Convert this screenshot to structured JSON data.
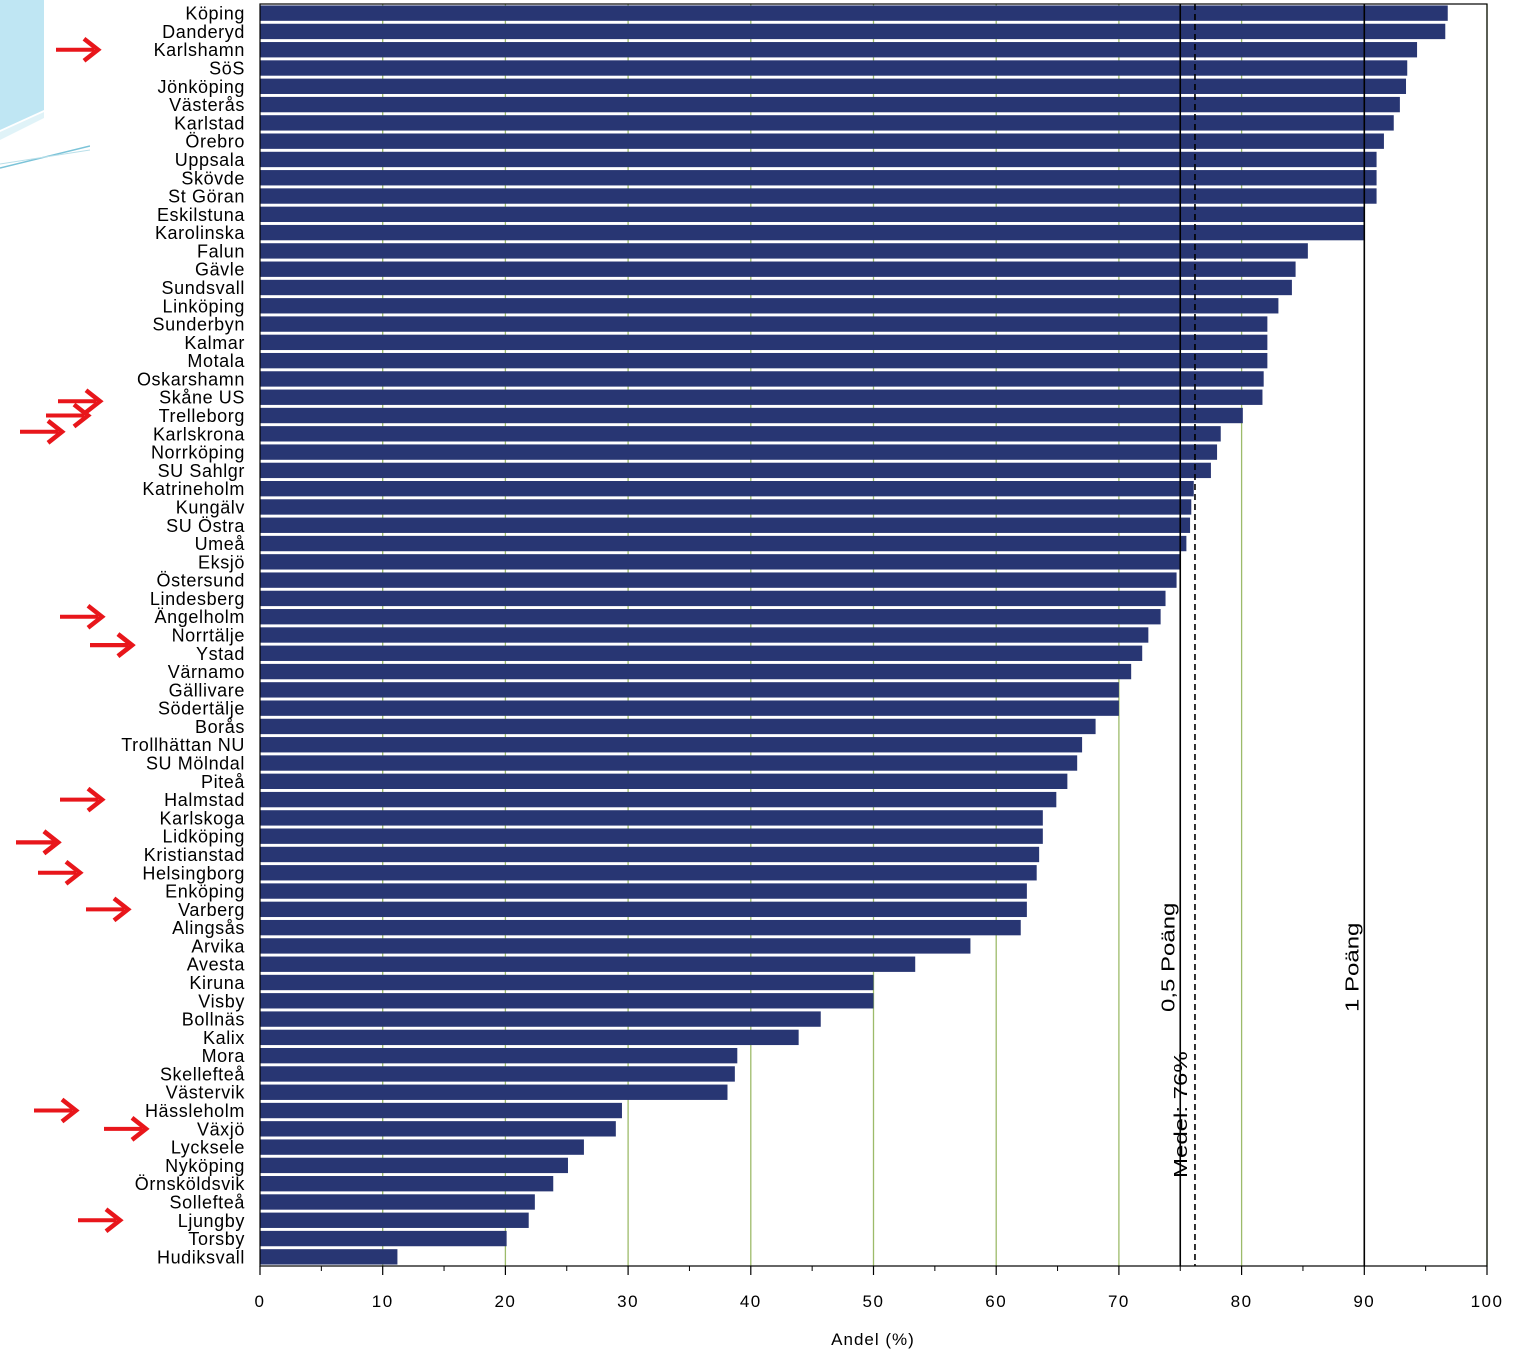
{
  "chart_data": {
    "type": "bar",
    "orientation": "horizontal",
    "xlabel": "Andel (%)",
    "xlim": [
      0,
      100
    ],
    "xticks": [
      0,
      10,
      20,
      30,
      40,
      50,
      60,
      70,
      80,
      90,
      100
    ],
    "categories": [
      "Köping",
      "Danderyd",
      "Karlshamn",
      "SöS",
      "Jönköping",
      "Västerås",
      "Karlstad",
      "Örebro",
      "Uppsala",
      "Skövde",
      "St Göran",
      "Eskilstuna",
      "Karolinska",
      "Falun",
      "Gävle",
      "Sundsvall",
      "Linköping",
      "Sunderbyn",
      "Kalmar",
      "Motala",
      "Oskarshamn",
      "Skåne US",
      "Trelleborg",
      "Karlskrona",
      "Norrköping",
      "SU Sahlgr",
      "Katrineholm",
      "Kungälv",
      "SU Östra",
      "Umeå",
      "Eksjö",
      "Östersund",
      "Lindesberg",
      "Ängelholm",
      "Norrtälje",
      "Ystad",
      "Värnamo",
      "Gällivare",
      "Södertälje",
      "Borås",
      "Trollhättan NU",
      "SU Mölndal",
      "Piteå",
      "Halmstad",
      "Karlskoga",
      "Lidköping",
      "Kristianstad",
      "Helsingborg",
      "Enköping",
      "Varberg",
      "Alingsås",
      "Arvika",
      "Avesta",
      "Kiruna",
      "Visby",
      "Bollnäs",
      "Kalix",
      "Mora",
      "Skellefteå",
      "Västervik",
      "Hässleholm",
      "Växjö",
      "Lycksele",
      "Nyköping",
      "Örnsköldsvik",
      "Sollefteå",
      "Ljungby",
      "Torsby",
      "Hudiksvall"
    ],
    "values": [
      96.8,
      96.6,
      94.3,
      93.5,
      93.4,
      92.9,
      92.4,
      91.6,
      91.0,
      91.0,
      91.0,
      90.0,
      90.0,
      85.4,
      84.4,
      84.1,
      83.0,
      82.1,
      82.1,
      82.1,
      81.8,
      81.7,
      80.1,
      78.3,
      78.0,
      77.5,
      76.1,
      75.9,
      75.8,
      75.5,
      75.0,
      74.7,
      73.8,
      73.4,
      72.4,
      71.9,
      71.0,
      70.0,
      70.0,
      68.1,
      67.0,
      66.6,
      65.8,
      64.9,
      63.8,
      63.8,
      63.5,
      63.3,
      62.5,
      62.5,
      62.0,
      57.9,
      53.4,
      50.0,
      50.0,
      45.7,
      43.9,
      38.9,
      38.7,
      38.1,
      29.5,
      29.0,
      26.4,
      25.1,
      23.9,
      22.4,
      21.9,
      20.1,
      11.2
    ],
    "grid": "vertical",
    "bar_color": "#283673",
    "gridline_color": "#9dbb6a",
    "arrow_color": "#e8161b",
    "reference_lines": [
      {
        "value": 75,
        "style": "solid",
        "label": "0,5 Poäng"
      },
      {
        "value": 76.2,
        "style": "dashed",
        "label": "Medel: 76%"
      },
      {
        "value": 90,
        "style": "solid",
        "label": "1 Poäng"
      }
    ],
    "highlighted": [
      "Karlshamn",
      "Skåne US",
      "Trelleborg",
      "Karlskrona",
      "Ängelholm",
      "Norrtälje",
      "Ystad",
      "Halmstad",
      "Lidköping",
      "Kristianstad",
      "Helsingborg",
      "Varberg",
      "Hässleholm",
      "Växjö",
      "Ljungby"
    ]
  }
}
